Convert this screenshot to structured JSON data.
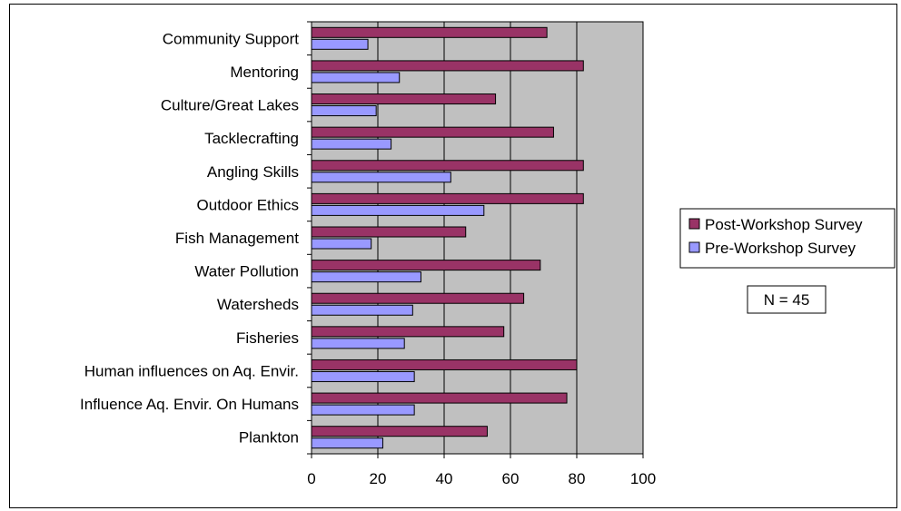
{
  "chart_data": {
    "type": "bar",
    "orientation": "horizontal",
    "categories": [
      "Community Support",
      "Mentoring",
      "Culture/Great Lakes",
      "Tacklecrafting",
      "Angling Skills",
      "Outdoor Ethics",
      "Fish Management",
      "Water Pollution",
      "Watersheds",
      "Fisheries",
      "Human influences on Aq. Envir.",
      "Influence Aq. Envir. On Humans",
      "Plankton"
    ],
    "series": [
      {
        "name": "Post-Workshop Survey",
        "color": "#993366",
        "values": [
          71,
          82,
          55.5,
          73,
          82,
          82,
          46.5,
          69,
          64,
          58,
          80,
          77,
          53
        ]
      },
      {
        "name": "Pre-Workshop Survey",
        "color": "#9999ff",
        "values": [
          17,
          26.5,
          19.5,
          24,
          42,
          52,
          18,
          33,
          30.5,
          28,
          31,
          31,
          21.5
        ]
      }
    ],
    "xlim": [
      0,
      100
    ],
    "xticks": [
      "0",
      "20",
      "40",
      "60",
      "80",
      "100"
    ],
    "plot_background": "#c0c0c0",
    "grid": true,
    "legend_position": "right",
    "annotation": "N = 45"
  }
}
